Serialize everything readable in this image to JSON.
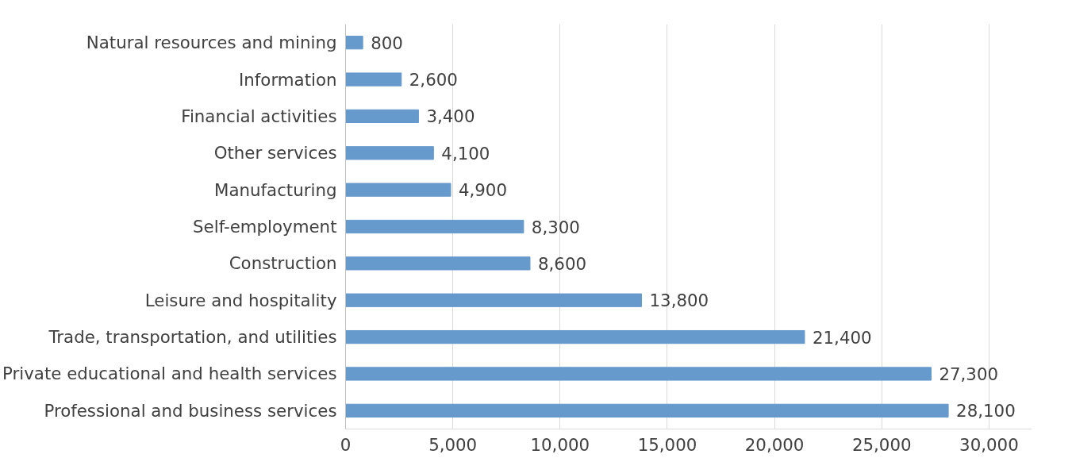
{
  "chart_data": {
    "type": "bar",
    "orientation": "horizontal",
    "categories": [
      "Natural resources and mining",
      "Information",
      "Financial activities",
      "Other services",
      "Manufacturing",
      "Self-employment",
      "Construction",
      "Leisure and hospitality",
      "Trade, transportation, and utilities",
      "Private educational and health services",
      "Professional and business services"
    ],
    "values": [
      800,
      2600,
      3400,
      4100,
      4900,
      8300,
      8600,
      13800,
      21400,
      27300,
      28100
    ],
    "color": "#6699cc",
    "value_labels": [
      "800",
      "2,600",
      "3,400",
      "4,100",
      "4,900",
      "8,300",
      "8,600",
      "13,800",
      "21,400",
      "27,300",
      "28,100"
    ],
    "xlim": [
      0,
      32000
    ],
    "xticks": [
      {
        "value": 0,
        "label": "0"
      },
      {
        "value": 5000,
        "label": "5,000"
      },
      {
        "value": 10000,
        "label": "10,000"
      },
      {
        "value": 15000,
        "label": "15,000"
      },
      {
        "value": 20000,
        "label": "20,000"
      },
      {
        "value": 25000,
        "label": "25,000"
      },
      {
        "value": 30000,
        "label": "30,000"
      }
    ],
    "grid": "x"
  }
}
